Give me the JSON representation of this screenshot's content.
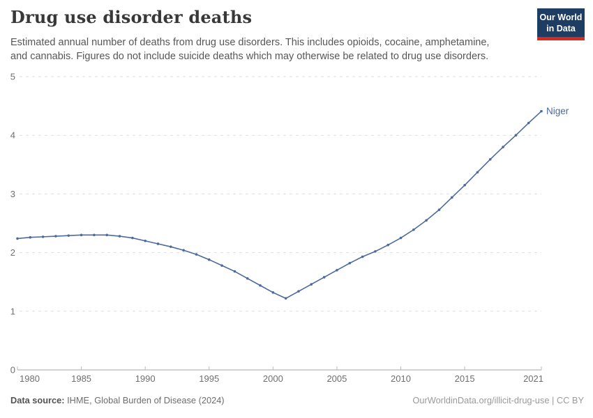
{
  "header": {
    "title": "Drug use disorder deaths",
    "subtitle": "Estimated annual number of deaths from drug use disorders. This includes opioids, cocaine, amphetamine, and cannabis. Figures do not include suicide deaths which may otherwise be related to drug use disorders.",
    "logo": {
      "line1": "Our World",
      "line2": "in Data",
      "bg_color": "#1d3d63",
      "accent_color": "#d42b21"
    }
  },
  "chart_data": {
    "type": "line",
    "title": "Drug use disorder deaths",
    "xlim": [
      1980,
      2021
    ],
    "ylim": [
      0,
      5
    ],
    "x_ticks": [
      1980,
      1985,
      1990,
      1995,
      2000,
      2005,
      2010,
      2015,
      2021
    ],
    "y_ticks": [
      0,
      1,
      2,
      3,
      4,
      5
    ],
    "grid": "horizontal-dashed",
    "legend_position": "end-of-line-label",
    "axis_color": "#a6a6a6",
    "gridline_color": "#dedede",
    "tick_label_color": "#6e6e6e",
    "series": [
      {
        "name": "Niger",
        "color": "#4c6a9c",
        "x": [
          1980,
          1981,
          1982,
          1983,
          1984,
          1985,
          1986,
          1987,
          1988,
          1989,
          1990,
          1991,
          1992,
          1993,
          1994,
          1995,
          1996,
          1997,
          1998,
          1999,
          2000,
          2001,
          2002,
          2003,
          2004,
          2005,
          2006,
          2007,
          2008,
          2009,
          2010,
          2011,
          2012,
          2013,
          2014,
          2015,
          2016,
          2017,
          2018,
          2019,
          2020,
          2021
        ],
        "values": [
          2.24,
          2.26,
          2.27,
          2.28,
          2.29,
          2.3,
          2.3,
          2.3,
          2.28,
          2.25,
          2.2,
          2.15,
          2.1,
          2.04,
          1.97,
          1.88,
          1.78,
          1.68,
          1.56,
          1.44,
          1.32,
          1.22,
          1.34,
          1.46,
          1.58,
          1.7,
          1.82,
          1.93,
          2.02,
          2.13,
          2.25,
          2.39,
          2.55,
          2.73,
          2.94,
          3.15,
          3.37,
          3.59,
          3.8,
          4.0,
          4.21,
          4.41
        ]
      }
    ]
  },
  "footer": {
    "source_label": "Data source:",
    "source_value": "IHME, Global Burden of Disease (2024)",
    "right_text": "OurWorldinData.org/illicit-drug-use | CC BY"
  }
}
